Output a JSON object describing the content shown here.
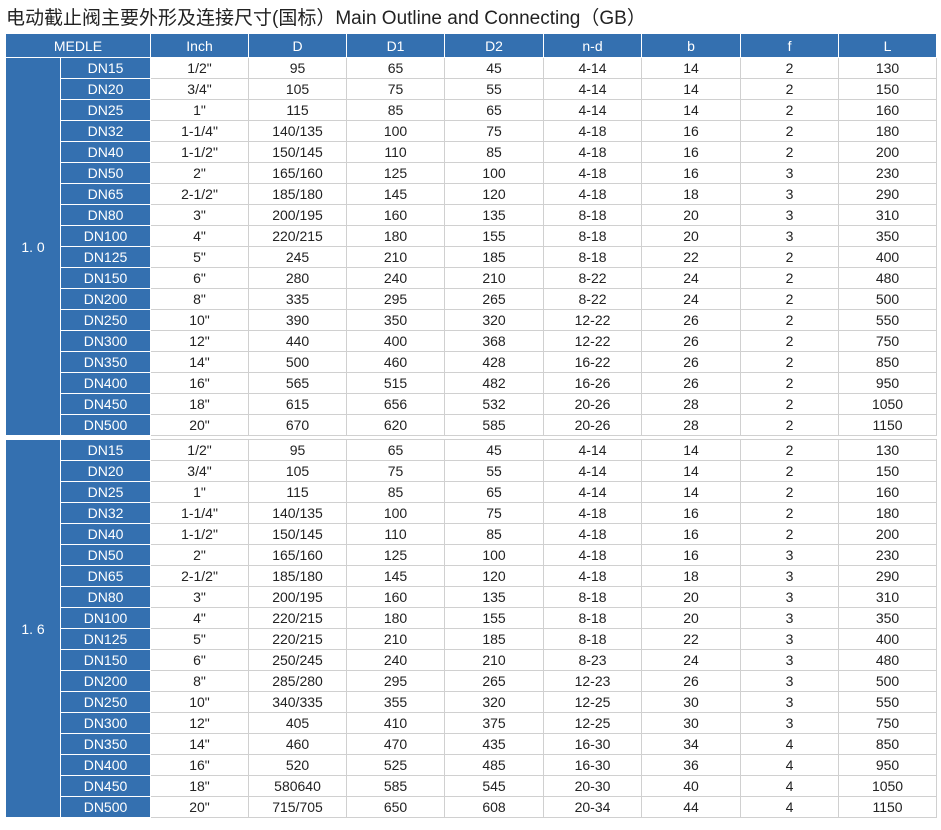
{
  "title": "电动截止阀主要外形及连接尺寸(国标）Main Outline and Connecting（GB）",
  "headers": [
    "MEDLE",
    "Inch",
    "D",
    "D1",
    "D2",
    "n-d",
    "b",
    "f",
    "L"
  ],
  "colors": {
    "header_bg": "#3470b0"
  },
  "groups": [
    {
      "label": "1. 0",
      "rows": [
        [
          "DN15",
          "1/2\"",
          "95",
          "65",
          "45",
          "4-14",
          "14",
          "2",
          "130"
        ],
        [
          "DN20",
          "3/4\"",
          "105",
          "75",
          "55",
          "4-14",
          "14",
          "2",
          "150"
        ],
        [
          "DN25",
          "1\"",
          "115",
          "85",
          "65",
          "4-14",
          "14",
          "2",
          "160"
        ],
        [
          "DN32",
          "1-1/4\"",
          "140/135",
          "100",
          "75",
          "4-18",
          "16",
          "2",
          "180"
        ],
        [
          "DN40",
          "1-1/2\"",
          "150/145",
          "110",
          "85",
          "4-18",
          "16",
          "2",
          "200"
        ],
        [
          "DN50",
          "2\"",
          "165/160",
          "125",
          "100",
          "4-18",
          "16",
          "3",
          "230"
        ],
        [
          "DN65",
          "2-1/2\"",
          "185/180",
          "145",
          "120",
          "4-18",
          "18",
          "3",
          "290"
        ],
        [
          "DN80",
          "3\"",
          "200/195",
          "160",
          "135",
          "8-18",
          "20",
          "3",
          "310"
        ],
        [
          "DN100",
          "4\"",
          "220/215",
          "180",
          "155",
          "8-18",
          "20",
          "3",
          "350"
        ],
        [
          "DN125",
          "5\"",
          "245",
          "210",
          "185",
          "8-18",
          "22",
          "2",
          "400"
        ],
        [
          "DN150",
          "6\"",
          "280",
          "240",
          "210",
          "8-22",
          "24",
          "2",
          "480"
        ],
        [
          "DN200",
          "8\"",
          "335",
          "295",
          "265",
          "8-22",
          "24",
          "2",
          "500"
        ],
        [
          "DN250",
          "10\"",
          "390",
          "350",
          "320",
          "12-22",
          "26",
          "2",
          "550"
        ],
        [
          "DN300",
          "12\"",
          "440",
          "400",
          "368",
          "12-22",
          "26",
          "2",
          "750"
        ],
        [
          "DN350",
          "14\"",
          "500",
          "460",
          "428",
          "16-22",
          "26",
          "2",
          "850"
        ],
        [
          "DN400",
          "16\"",
          "565",
          "515",
          "482",
          "16-26",
          "26",
          "2",
          "950"
        ],
        [
          "DN450",
          "18\"",
          "615",
          "656",
          "532",
          "20-26",
          "28",
          "2",
          "1050"
        ],
        [
          "DN500",
          "20\"",
          "670",
          "620",
          "585",
          "20-26",
          "28",
          "2",
          "1150"
        ]
      ]
    },
    {
      "label": "1. 6",
      "rows": [
        [
          "DN15",
          "1/2\"",
          "95",
          "65",
          "45",
          "4-14",
          "14",
          "2",
          "130"
        ],
        [
          "DN20",
          "3/4\"",
          "105",
          "75",
          "55",
          "4-14",
          "14",
          "2",
          "150"
        ],
        [
          "DN25",
          "1\"",
          "115",
          "85",
          "65",
          "4-14",
          "14",
          "2",
          "160"
        ],
        [
          "DN32",
          "1-1/4\"",
          "140/135",
          "100",
          "75",
          "4-18",
          "16",
          "2",
          "180"
        ],
        [
          "DN40",
          "1-1/2\"",
          "150/145",
          "110",
          "85",
          "4-18",
          "16",
          "2",
          "200"
        ],
        [
          "DN50",
          "2\"",
          "165/160",
          "125",
          "100",
          "4-18",
          "16",
          "3",
          "230"
        ],
        [
          "DN65",
          "2-1/2\"",
          "185/180",
          "145",
          "120",
          "4-18",
          "18",
          "3",
          "290"
        ],
        [
          "DN80",
          "3\"",
          "200/195",
          "160",
          "135",
          "8-18",
          "20",
          "3",
          "310"
        ],
        [
          "DN100",
          "4\"",
          "220/215",
          "180",
          "155",
          "8-18",
          "20",
          "3",
          "350"
        ],
        [
          "DN125",
          "5\"",
          "220/215",
          "210",
          "185",
          "8-18",
          "22",
          "3",
          "400"
        ],
        [
          "DN150",
          "6\"",
          "250/245",
          "240",
          "210",
          "8-23",
          "24",
          "3",
          "480"
        ],
        [
          "DN200",
          "8\"",
          "285/280",
          "295",
          "265",
          "12-23",
          "26",
          "3",
          "500"
        ],
        [
          "DN250",
          "10\"",
          "340/335",
          "355",
          "320",
          "12-25",
          "30",
          "3",
          "550"
        ],
        [
          "DN300",
          "12\"",
          "405",
          "410",
          "375",
          "12-25",
          "30",
          "3",
          "750"
        ],
        [
          "DN350",
          "14\"",
          "460",
          "470",
          "435",
          "16-30",
          "34",
          "4",
          "850"
        ],
        [
          "DN400",
          "16\"",
          "520",
          "525",
          "485",
          "16-30",
          "36",
          "4",
          "950"
        ],
        [
          "DN450",
          "18\"",
          "580640",
          "585",
          "545",
          "20-30",
          "40",
          "4",
          "1050"
        ],
        [
          "DN500",
          "20\"",
          "715/705",
          "650",
          "608",
          "20-34",
          "44",
          "4",
          "1150"
        ]
      ]
    }
  ]
}
